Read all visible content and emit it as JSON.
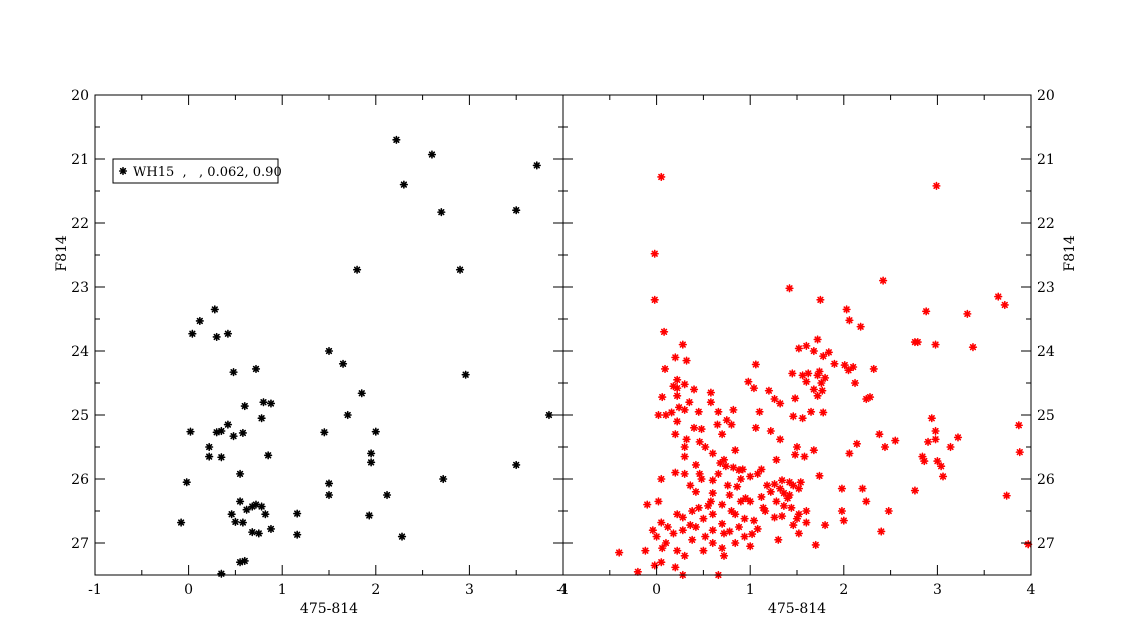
{
  "chart_data": [
    {
      "type": "scatter",
      "xlabel": "475-814",
      "ylabel": "F814",
      "xlim": [
        -1,
        4
      ],
      "ylim": [
        27.5,
        20
      ],
      "y_inverted": true,
      "x_ticks": [
        "-1",
        "0",
        "1",
        "2",
        "3",
        "4"
      ],
      "y_ticks": [
        "20",
        "21",
        "22",
        "23",
        "24",
        "25",
        "26",
        "27"
      ],
      "legend": {
        "label": "WH15  ,   , 0.062, 0.90",
        "placement": "top-left"
      },
      "color": "#000000",
      "marker": "asterisk",
      "points": [
        [
          2.22,
          20.7
        ],
        [
          2.6,
          20.93
        ],
        [
          3.72,
          21.1
        ],
        [
          2.3,
          21.4
        ],
        [
          2.7,
          21.83
        ],
        [
          3.5,
          21.8
        ],
        [
          1.8,
          22.73
        ],
        [
          2.9,
          22.73
        ],
        [
          0.28,
          23.35
        ],
        [
          0.12,
          23.53
        ],
        [
          0.04,
          23.73
        ],
        [
          0.3,
          23.78
        ],
        [
          0.42,
          23.73
        ],
        [
          1.5,
          24.0
        ],
        [
          1.65,
          24.2
        ],
        [
          0.72,
          24.28
        ],
        [
          0.48,
          24.33
        ],
        [
          2.96,
          24.37
        ],
        [
          1.85,
          24.66
        ],
        [
          0.8,
          24.8
        ],
        [
          0.88,
          24.82
        ],
        [
          0.6,
          24.86
        ],
        [
          3.85,
          25.0
        ],
        [
          1.7,
          25.0
        ],
        [
          0.78,
          25.05
        ],
        [
          0.42,
          25.15
        ],
        [
          0.35,
          25.25
        ],
        [
          0.3,
          25.27
        ],
        [
          0.02,
          25.26
        ],
        [
          0.48,
          25.33
        ],
        [
          0.58,
          25.28
        ],
        [
          1.45,
          25.27
        ],
        [
          2.0,
          25.26
        ],
        [
          0.22,
          25.5
        ],
        [
          1.95,
          25.6
        ],
        [
          0.22,
          25.65
        ],
        [
          0.35,
          25.66
        ],
        [
          0.85,
          25.63
        ],
        [
          1.95,
          25.74
        ],
        [
          3.5,
          25.78
        ],
        [
          0.55,
          25.92
        ],
        [
          2.72,
          26.0
        ],
        [
          -0.02,
          26.05
        ],
        [
          1.5,
          26.07
        ],
        [
          1.5,
          26.25
        ],
        [
          2.12,
          26.25
        ],
        [
          0.55,
          26.35
        ],
        [
          0.72,
          26.4
        ],
        [
          0.68,
          26.43
        ],
        [
          0.62,
          26.48
        ],
        [
          0.78,
          26.43
        ],
        [
          0.46,
          26.55
        ],
        [
          0.82,
          26.55
        ],
        [
          1.16,
          26.54
        ],
        [
          1.93,
          26.57
        ],
        [
          0.5,
          26.67
        ],
        [
          0.58,
          26.68
        ],
        [
          -0.08,
          26.68
        ],
        [
          0.88,
          26.78
        ],
        [
          0.68,
          26.83
        ],
        [
          0.75,
          26.85
        ],
        [
          1.16,
          26.87
        ],
        [
          2.28,
          26.9
        ],
        [
          0.6,
          27.28
        ],
        [
          0.55,
          27.3
        ],
        [
          0.35,
          27.48
        ]
      ]
    },
    {
      "type": "scatter",
      "xlabel": "475-814",
      "ylabel": "F814",
      "xlim": [
        -1,
        4
      ],
      "ylim": [
        27.5,
        20
      ],
      "y_inverted": true,
      "x_ticks": [
        "-1",
        "0",
        "1",
        "2",
        "3",
        "4"
      ],
      "y_ticks": [
        "20",
        "21",
        "22",
        "23",
        "24",
        "25",
        "26",
        "27"
      ],
      "color": "#ff0000",
      "marker": "asterisk",
      "points": [
        [
          0.05,
          21.28
        ],
        [
          2.99,
          21.42
        ],
        [
          -0.02,
          22.48
        ],
        [
          2.42,
          22.9
        ],
        [
          1.42,
          23.02
        ],
        [
          3.65,
          23.15
        ],
        [
          -0.02,
          23.2
        ],
        [
          1.75,
          23.2
        ],
        [
          3.72,
          23.28
        ],
        [
          2.03,
          23.35
        ],
        [
          2.88,
          23.38
        ],
        [
          3.32,
          23.42
        ],
        [
          2.06,
          23.52
        ],
        [
          2.18,
          23.62
        ],
        [
          0.08,
          23.7
        ],
        [
          1.72,
          23.82
        ],
        [
          2.76,
          23.86
        ],
        [
          2.79,
          23.86
        ],
        [
          2.98,
          23.9
        ],
        [
          0.28,
          23.9
        ],
        [
          1.6,
          23.92
        ],
        [
          3.38,
          23.94
        ],
        [
          1.52,
          23.96
        ],
        [
          1.68,
          24.0
        ],
        [
          1.84,
          24.02
        ],
        [
          1.78,
          24.08
        ],
        [
          0.2,
          24.1
        ],
        [
          0.32,
          24.15
        ],
        [
          1.9,
          24.2
        ],
        [
          1.06,
          24.21
        ],
        [
          2.01,
          24.22
        ],
        [
          2.1,
          24.25
        ],
        [
          0.09,
          24.28
        ],
        [
          2.05,
          24.3
        ],
        [
          2.32,
          24.28
        ],
        [
          1.74,
          24.32
        ],
        [
          1.45,
          24.35
        ],
        [
          1.62,
          24.35
        ],
        [
          1.56,
          24.38
        ],
        [
          1.72,
          24.38
        ],
        [
          1.8,
          24.42
        ],
        [
          0.22,
          24.45
        ],
        [
          0.98,
          24.48
        ],
        [
          1.6,
          24.48
        ],
        [
          1.76,
          24.5
        ],
        [
          2.12,
          24.5
        ],
        [
          0.3,
          24.52
        ],
        [
          0.18,
          24.55
        ],
        [
          0.22,
          24.58
        ],
        [
          1.04,
          24.58
        ],
        [
          0.4,
          24.6
        ],
        [
          1.68,
          24.6
        ],
        [
          1.2,
          24.62
        ],
        [
          1.77,
          24.62
        ],
        [
          0.58,
          24.65
        ],
        [
          0.22,
          24.7
        ],
        [
          0.06,
          24.72
        ],
        [
          1.72,
          24.7
        ],
        [
          2.28,
          24.72
        ],
        [
          1.26,
          24.75
        ],
        [
          1.48,
          24.74
        ],
        [
          2.24,
          24.75
        ],
        [
          0.35,
          24.8
        ],
        [
          0.58,
          24.8
        ],
        [
          1.32,
          24.82
        ],
        [
          0.24,
          24.88
        ],
        [
          0.3,
          24.92
        ],
        [
          0.82,
          24.92
        ],
        [
          0.16,
          24.96
        ],
        [
          0.45,
          24.95
        ],
        [
          0.66,
          24.95
        ],
        [
          1.1,
          24.95
        ],
        [
          1.65,
          24.95
        ],
        [
          1.78,
          24.96
        ],
        [
          0.02,
          25.0
        ],
        [
          0.1,
          25.0
        ],
        [
          1.46,
          25.02
        ],
        [
          1.56,
          25.05
        ],
        [
          0.75,
          25.08
        ],
        [
          2.94,
          25.05
        ],
        [
          0.22,
          25.1
        ],
        [
          0.65,
          25.15
        ],
        [
          0.8,
          25.15
        ],
        [
          0.4,
          25.2
        ],
        [
          3.87,
          25.16
        ],
        [
          0.48,
          25.22
        ],
        [
          1.06,
          25.2
        ],
        [
          1.22,
          25.25
        ],
        [
          2.98,
          25.25
        ],
        [
          0.2,
          25.3
        ],
        [
          0.7,
          25.3
        ],
        [
          2.38,
          25.3
        ],
        [
          3.22,
          25.35
        ],
        [
          0.32,
          25.38
        ],
        [
          1.32,
          25.38
        ],
        [
          2.55,
          25.4
        ],
        [
          0.46,
          25.42
        ],
        [
          2.9,
          25.42
        ],
        [
          2.98,
          25.38
        ],
        [
          2.14,
          25.45
        ],
        [
          0.3,
          25.5
        ],
        [
          0.52,
          25.5
        ],
        [
          1.5,
          25.5
        ],
        [
          2.44,
          25.5
        ],
        [
          3.14,
          25.5
        ],
        [
          0.84,
          25.55
        ],
        [
          1.68,
          25.55
        ],
        [
          0.6,
          25.6
        ],
        [
          2.06,
          25.6
        ],
        [
          3.88,
          25.58
        ],
        [
          0.3,
          25.65
        ],
        [
          1.48,
          25.62
        ],
        [
          2.84,
          25.65
        ],
        [
          0.72,
          25.7
        ],
        [
          1.28,
          25.7
        ],
        [
          1.58,
          25.65
        ],
        [
          2.86,
          25.72
        ],
        [
          3.0,
          25.72
        ],
        [
          0.68,
          25.75
        ],
        [
          0.42,
          25.78
        ],
        [
          0.74,
          25.8
        ],
        [
          0.82,
          25.82
        ],
        [
          0.92,
          25.85
        ],
        [
          1.12,
          25.85
        ],
        [
          0.88,
          25.86
        ],
        [
          3.04,
          25.8
        ],
        [
          0.2,
          25.9
        ],
        [
          0.3,
          25.92
        ],
        [
          0.46,
          25.92
        ],
        [
          0.66,
          25.92
        ],
        [
          1.08,
          25.92
        ],
        [
          3.06,
          25.96
        ],
        [
          1.0,
          25.96
        ],
        [
          1.74,
          25.95
        ],
        [
          0.05,
          26.0
        ],
        [
          0.48,
          26.0
        ],
        [
          0.9,
          26.0
        ],
        [
          0.6,
          26.02
        ],
        [
          1.34,
          26.02
        ],
        [
          1.42,
          26.05
        ],
        [
          1.26,
          26.08
        ],
        [
          1.54,
          26.05
        ],
        [
          0.36,
          26.1
        ],
        [
          0.76,
          26.1
        ],
        [
          1.18,
          26.1
        ],
        [
          1.46,
          26.1
        ],
        [
          0.86,
          26.12
        ],
        [
          1.32,
          26.15
        ],
        [
          1.52,
          26.15
        ],
        [
          1.98,
          26.15
        ],
        [
          2.2,
          26.15
        ],
        [
          2.76,
          26.18
        ],
        [
          3.74,
          26.26
        ],
        [
          0.42,
          26.2
        ],
        [
          0.6,
          26.22
        ],
        [
          0.78,
          26.25
        ],
        [
          1.22,
          26.2
        ],
        [
          1.36,
          26.22
        ],
        [
          1.42,
          26.25
        ],
        [
          1.12,
          26.28
        ],
        [
          1.4,
          26.3
        ],
        [
          0.95,
          26.3
        ],
        [
          0.02,
          26.35
        ],
        [
          0.58,
          26.35
        ],
        [
          0.9,
          26.35
        ],
        [
          1.0,
          26.35
        ],
        [
          1.28,
          26.35
        ],
        [
          2.24,
          26.35
        ],
        [
          -0.1,
          26.4
        ],
        [
          0.55,
          26.42
        ],
        [
          0.7,
          26.4
        ],
        [
          1.36,
          26.42
        ],
        [
          0.45,
          26.45
        ],
        [
          1.14,
          26.45
        ],
        [
          1.44,
          26.45
        ],
        [
          0.38,
          26.5
        ],
        [
          0.8,
          26.5
        ],
        [
          1.16,
          26.5
        ],
        [
          1.6,
          26.5
        ],
        [
          1.98,
          26.5
        ],
        [
          2.48,
          26.5
        ],
        [
          0.22,
          26.55
        ],
        [
          0.6,
          26.55
        ],
        [
          0.84,
          26.55
        ],
        [
          1.52,
          26.55
        ],
        [
          1.34,
          26.58
        ],
        [
          1.26,
          26.6
        ],
        [
          0.28,
          26.6
        ],
        [
          0.5,
          26.62
        ],
        [
          0.94,
          26.62
        ],
        [
          1.5,
          26.62
        ],
        [
          2.0,
          26.65
        ],
        [
          1.04,
          26.65
        ],
        [
          0.05,
          26.68
        ],
        [
          0.7,
          26.7
        ],
        [
          1.6,
          26.68
        ],
        [
          1.46,
          26.72
        ],
        [
          0.36,
          26.72
        ],
        [
          1.8,
          26.72
        ],
        [
          0.12,
          26.75
        ],
        [
          0.42,
          26.75
        ],
        [
          0.88,
          26.75
        ],
        [
          1.08,
          26.78
        ],
        [
          -0.04,
          26.8
        ],
        [
          0.28,
          26.8
        ],
        [
          0.6,
          26.8
        ],
        [
          0.78,
          26.82
        ],
        [
          0.72,
          26.85
        ],
        [
          2.4,
          26.82
        ],
        [
          0.18,
          26.85
        ],
        [
          1.02,
          26.86
        ],
        [
          1.52,
          26.85
        ],
        [
          0.0,
          26.9
        ],
        [
          0.52,
          26.9
        ],
        [
          0.94,
          26.9
        ],
        [
          0.38,
          26.95
        ],
        [
          1.3,
          26.95
        ],
        [
          0.1,
          27.0
        ],
        [
          0.6,
          27.0
        ],
        [
          0.84,
          27.0
        ],
        [
          1.7,
          27.03
        ],
        [
          3.97,
          27.02
        ],
        [
          1.0,
          27.05
        ],
        [
          0.06,
          27.08
        ],
        [
          0.7,
          27.08
        ],
        [
          -0.12,
          27.12
        ],
        [
          0.22,
          27.12
        ],
        [
          0.5,
          27.12
        ],
        [
          -0.4,
          27.15
        ],
        [
          0.3,
          27.2
        ],
        [
          0.72,
          27.2
        ],
        [
          0.05,
          27.3
        ],
        [
          -0.02,
          27.35
        ],
        [
          0.2,
          27.38
        ],
        [
          -0.2,
          27.45
        ],
        [
          0.28,
          27.5
        ],
        [
          0.66,
          27.5
        ]
      ]
    }
  ]
}
